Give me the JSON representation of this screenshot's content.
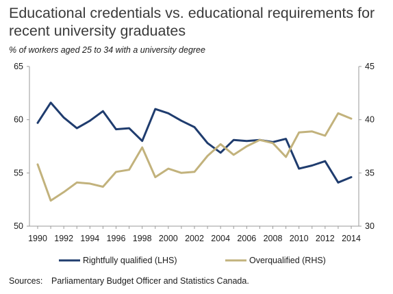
{
  "title": "Educational credentials vs. educational requirements for recent university graduates",
  "subtitle": "% of workers aged 25 to 34 with a university degree",
  "source_label": "Sources:",
  "source_text": "Parliamentary Budget Officer and Statistics Canada.",
  "chart_data": {
    "type": "line",
    "title": "Educational credentials vs. educational requirements for recent university graduates",
    "subtitle": "% of workers aged 25 to 34 with a university degree",
    "x": [
      1990,
      1991,
      1992,
      1993,
      1994,
      1995,
      1996,
      1997,
      1998,
      1999,
      2000,
      2001,
      2002,
      2003,
      2004,
      2005,
      2006,
      2007,
      2008,
      2009,
      2010,
      2011,
      2012,
      2013,
      2014
    ],
    "x_ticks": [
      "1990",
      "1992",
      "1994",
      "1996",
      "1998",
      "2000",
      "2002",
      "2004",
      "2006",
      "2008",
      "2010",
      "2012",
      "2014"
    ],
    "y_left": {
      "range": [
        50,
        65
      ],
      "ticks": [
        "50",
        "55",
        "60",
        "65"
      ]
    },
    "y_right": {
      "range": [
        30,
        45
      ],
      "ticks": [
        "30",
        "35",
        "40",
        "45"
      ]
    },
    "series": [
      {
        "name": "Rightfully qualified (LHS)",
        "axis": "left",
        "color": "#1f3c6e",
        "values": [
          59.7,
          61.6,
          60.2,
          59.2,
          59.9,
          60.8,
          59.1,
          59.2,
          58.0,
          61.0,
          60.6,
          59.9,
          59.3,
          57.8,
          56.9,
          58.1,
          58.0,
          58.1,
          57.9,
          58.2,
          55.4,
          55.7,
          56.1,
          54.1,
          54.6
        ]
      },
      {
        "name": "Overqualified (RHS)",
        "axis": "right",
        "color": "#c2b27c",
        "values": [
          35.8,
          32.4,
          33.2,
          34.1,
          34.0,
          33.7,
          35.1,
          35.3,
          37.4,
          34.6,
          35.4,
          35.0,
          35.1,
          36.6,
          37.7,
          36.7,
          37.5,
          38.1,
          37.8,
          36.5,
          38.8,
          38.9,
          38.5,
          40.6,
          40.1
        ]
      }
    ],
    "grid": false,
    "legend": "bottom"
  }
}
